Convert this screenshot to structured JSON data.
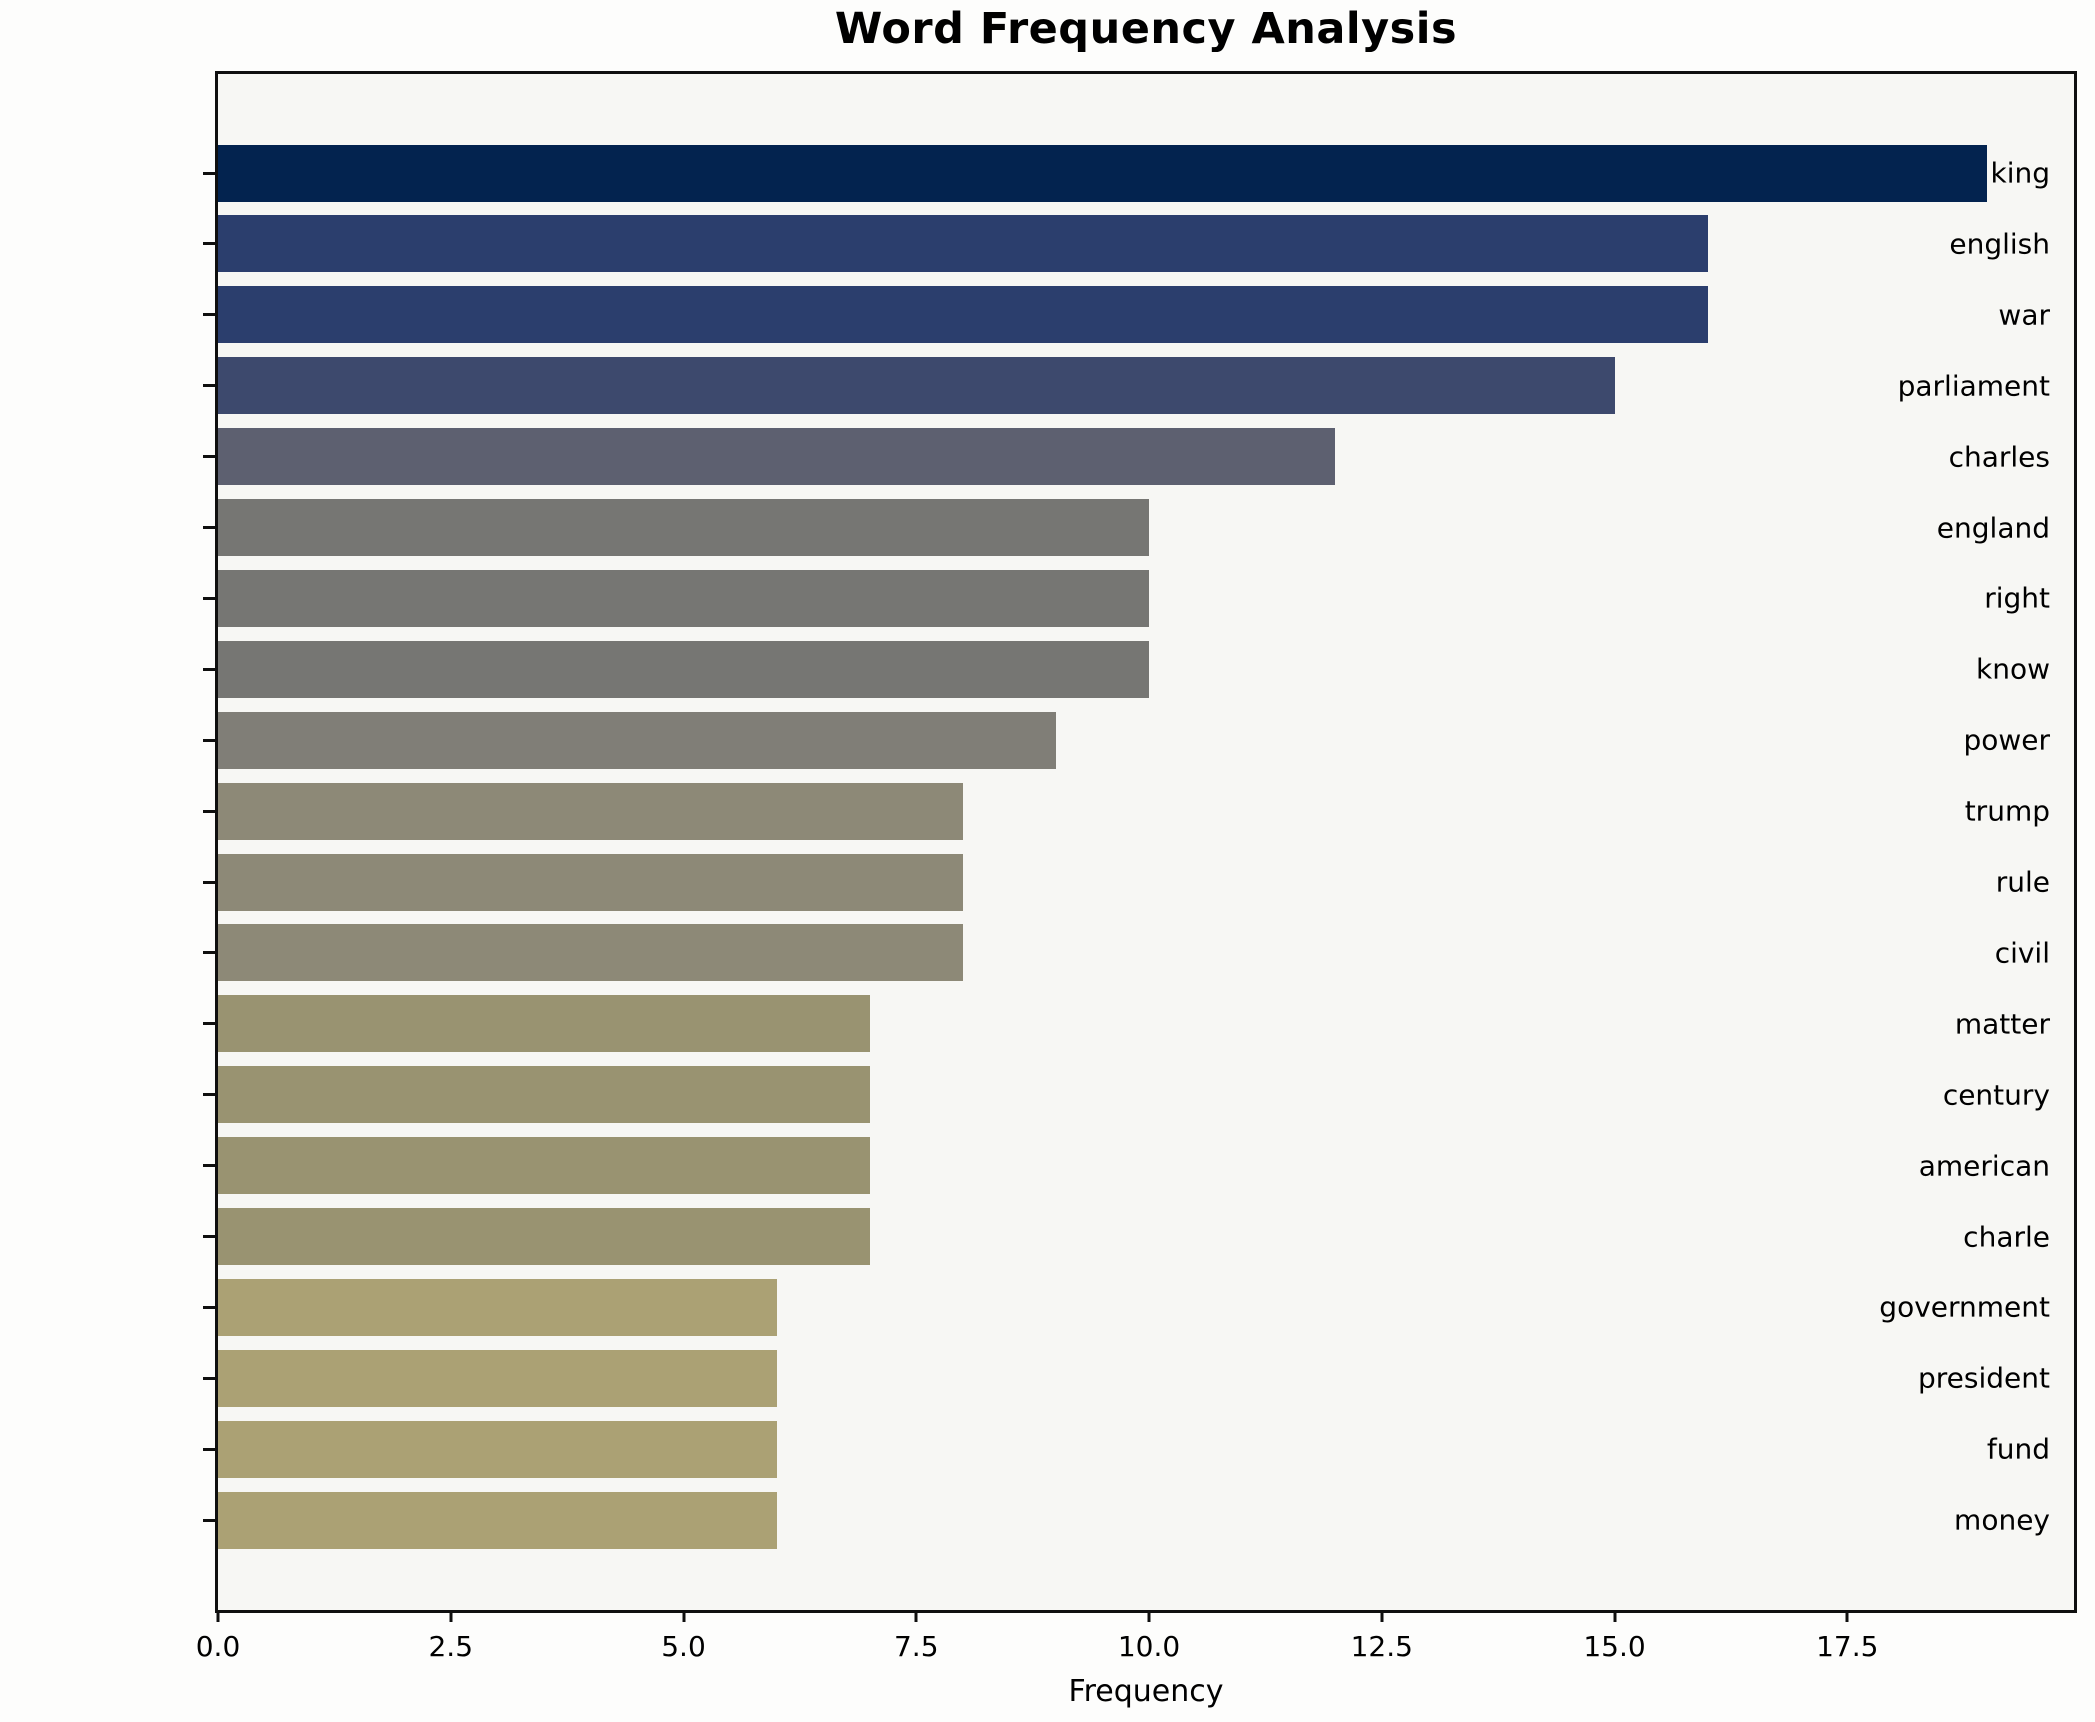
{
  "chart_data": {
    "type": "bar",
    "orientation": "horizontal",
    "title": "Word Frequency Analysis",
    "xlabel": "Frequency",
    "ylabel": "",
    "categories": [
      "king",
      "english",
      "war",
      "parliament",
      "charles",
      "england",
      "right",
      "know",
      "power",
      "trump",
      "rule",
      "civil",
      "matter",
      "century",
      "american",
      "charle",
      "government",
      "president",
      "fund",
      "money"
    ],
    "values": [
      19,
      16,
      16,
      15,
      12,
      10,
      10,
      10,
      9,
      8,
      8,
      8,
      7,
      7,
      7,
      7,
      6,
      6,
      6,
      6
    ],
    "xlim": [
      0,
      20
    ],
    "xticks": [
      0,
      2.5,
      5,
      7.5,
      10,
      12.5,
      15,
      17.5
    ],
    "xtick_labels": [
      "0.0",
      "2.5",
      "5.0",
      "7.5",
      "10.0",
      "12.5",
      "15.0",
      "17.5"
    ],
    "grid": false,
    "legend": null,
    "bar_colors": [
      "#03234f",
      "#2b3e6d",
      "#2b3e6d",
      "#3d496d",
      "#5d6070",
      "#767673",
      "#767673",
      "#767673",
      "#807e77",
      "#8d8977",
      "#8d8977",
      "#8d8977",
      "#999371",
      "#999371",
      "#999371",
      "#999371",
      "#aba174",
      "#aba174",
      "#aba174",
      "#aba174"
    ],
    "colors": {
      "figure_bg": "#fdfdfc",
      "axes_bg": "#f7f7f4",
      "spine": "#0f0f0f",
      "text": "#000000"
    }
  }
}
